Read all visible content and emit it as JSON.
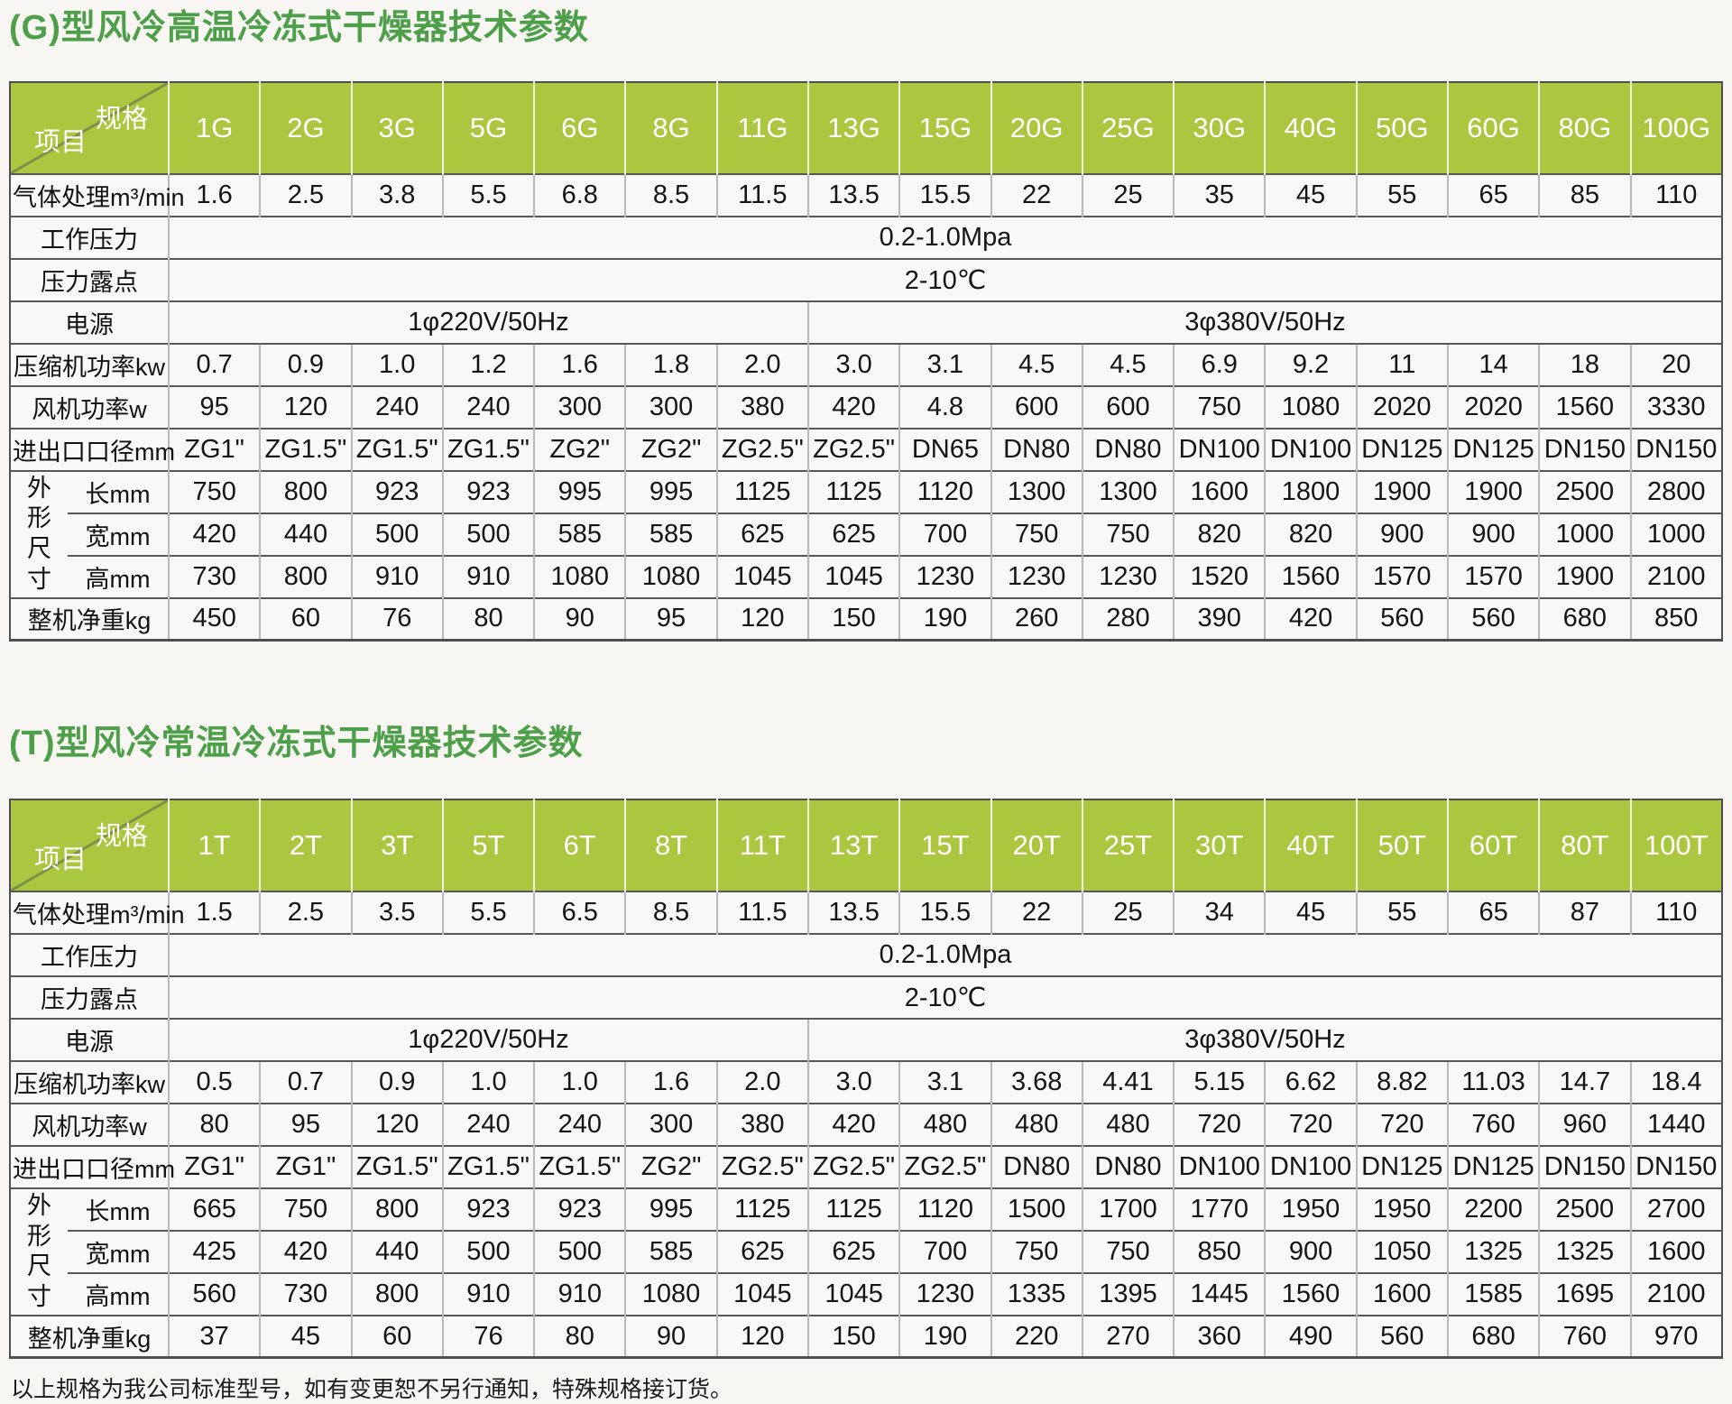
{
  "colors": {
    "title_green": "#4d9f49",
    "header_green": "#abc740",
    "page_bg": "#f7f6f2"
  },
  "note": "以上规格为我公司标准型号，如有变更恕不另行通知，特殊规格接订货。",
  "tables": [
    {
      "title": "(G)型风冷高温冷冻式干燥器技术参数",
      "corner_top": "规格",
      "corner_bottom": "项目",
      "models": [
        "1G",
        "2G",
        "3G",
        "5G",
        "6G",
        "8G",
        "11G",
        "13G",
        "15G",
        "20G",
        "25G",
        "30G",
        "40G",
        "50G",
        "60G",
        "80G",
        "100G"
      ],
      "rows": [
        {
          "label": "气体处理m³/min",
          "type": "values",
          "values": [
            "1.6",
            "2.5",
            "3.8",
            "5.5",
            "6.8",
            "8.5",
            "11.5",
            "13.5",
            "15.5",
            "22",
            "25",
            "35",
            "45",
            "55",
            "65",
            "85",
            "110"
          ]
        },
        {
          "label": "工作压力",
          "type": "span",
          "value": "0.2-1.0Mpa"
        },
        {
          "label": "压力露点",
          "type": "span",
          "value": "2-10℃"
        },
        {
          "label": "电源",
          "type": "split",
          "left": "1φ220V/50Hz",
          "left_cols": 7,
          "right": "3φ380V/50Hz",
          "right_cols": 10
        },
        {
          "label": "压缩机功率kw",
          "type": "values",
          "values": [
            "0.7",
            "0.9",
            "1.0",
            "1.2",
            "1.6",
            "1.8",
            "2.0",
            "3.0",
            "3.1",
            "4.5",
            "4.5",
            "6.9",
            "9.2",
            "11",
            "14",
            "18",
            "20"
          ]
        },
        {
          "label": "风机功率w",
          "type": "values",
          "values": [
            "95",
            "120",
            "240",
            "240",
            "300",
            "300",
            "380",
            "420",
            "4.8",
            "600",
            "600",
            "750",
            "1080",
            "2020",
            "2020",
            "1560",
            "3330"
          ]
        },
        {
          "label": "进出口口径mm",
          "type": "values",
          "values": [
            "ZG1\"",
            "ZG1.5\"",
            "ZG1.5\"",
            "ZG1.5\"",
            "ZG2\"",
            "ZG2\"",
            "ZG2.5\"",
            "ZG2.5\"",
            "DN65",
            "DN80",
            "DN80",
            "DN100",
            "DN100",
            "DN125",
            "DN125",
            "DN150",
            "DN150"
          ]
        },
        {
          "label": "长mm",
          "type": "values",
          "group": "外形尺寸",
          "group_start": true,
          "group_rows": 3,
          "values": [
            "750",
            "800",
            "923",
            "923",
            "995",
            "995",
            "1125",
            "1125",
            "1120",
            "1300",
            "1300",
            "1600",
            "1800",
            "1900",
            "1900",
            "2500",
            "2800"
          ]
        },
        {
          "label": "宽mm",
          "type": "values",
          "group": "外形尺寸",
          "values": [
            "420",
            "440",
            "500",
            "500",
            "585",
            "585",
            "625",
            "625",
            "700",
            "750",
            "750",
            "820",
            "820",
            "900",
            "900",
            "1000",
            "1000"
          ]
        },
        {
          "label": "高mm",
          "type": "values",
          "group": "外形尺寸",
          "values": [
            "730",
            "800",
            "910",
            "910",
            "1080",
            "1080",
            "1045",
            "1045",
            "1230",
            "1230",
            "1230",
            "1520",
            "1560",
            "1570",
            "1570",
            "1900",
            "2100"
          ]
        },
        {
          "label": "整机净重kg",
          "type": "values",
          "values": [
            "450",
            "60",
            "76",
            "80",
            "90",
            "95",
            "120",
            "150",
            "190",
            "260",
            "280",
            "390",
            "420",
            "560",
            "560",
            "680",
            "850"
          ]
        }
      ]
    },
    {
      "title": "(T)型风冷常温冷冻式干燥器技术参数",
      "corner_top": "规格",
      "corner_bottom": "项目",
      "models": [
        "1T",
        "2T",
        "3T",
        "5T",
        "6T",
        "8T",
        "11T",
        "13T",
        "15T",
        "20T",
        "25T",
        "30T",
        "40T",
        "50T",
        "60T",
        "80T",
        "100T"
      ],
      "rows": [
        {
          "label": "气体处理m³/min",
          "type": "values",
          "values": [
            "1.5",
            "2.5",
            "3.5",
            "5.5",
            "6.5",
            "8.5",
            "11.5",
            "13.5",
            "15.5",
            "22",
            "25",
            "34",
            "45",
            "55",
            "65",
            "87",
            "110"
          ]
        },
        {
          "label": "工作压力",
          "type": "span",
          "value": "0.2-1.0Mpa"
        },
        {
          "label": "压力露点",
          "type": "span",
          "value": "2-10℃"
        },
        {
          "label": "电源",
          "type": "split",
          "left": "1φ220V/50Hz",
          "left_cols": 7,
          "right": "3φ380V/50Hz",
          "right_cols": 10
        },
        {
          "label": "压缩机功率kw",
          "type": "values",
          "values": [
            "0.5",
            "0.7",
            "0.9",
            "1.0",
            "1.0",
            "1.6",
            "2.0",
            "3.0",
            "3.1",
            "3.68",
            "4.41",
            "5.15",
            "6.62",
            "8.82",
            "11.03",
            "14.7",
            "18.4"
          ]
        },
        {
          "label": "风机功率w",
          "type": "values",
          "values": [
            "80",
            "95",
            "120",
            "240",
            "240",
            "300",
            "380",
            "420",
            "480",
            "480",
            "480",
            "720",
            "720",
            "720",
            "760",
            "960",
            "1440"
          ]
        },
        {
          "label": "进出口口径mm",
          "type": "values",
          "values": [
            "ZG1\"",
            "ZG1\"",
            "ZG1.5\"",
            "ZG1.5\"",
            "ZG1.5\"",
            "ZG2\"",
            "ZG2.5\"",
            "ZG2.5\"",
            "ZG2.5\"",
            "DN80",
            "DN80",
            "DN100",
            "DN100",
            "DN125",
            "DN125",
            "DN150",
            "DN150"
          ]
        },
        {
          "label": "长mm",
          "type": "values",
          "group": "外形尺寸",
          "group_start": true,
          "group_rows": 3,
          "values": [
            "665",
            "750",
            "800",
            "923",
            "923",
            "995",
            "1125",
            "1125",
            "1120",
            "1500",
            "1700",
            "1770",
            "1950",
            "1950",
            "2200",
            "2500",
            "2700"
          ]
        },
        {
          "label": "宽mm",
          "type": "values",
          "group": "外形尺寸",
          "values": [
            "425",
            "420",
            "440",
            "500",
            "500",
            "585",
            "625",
            "625",
            "700",
            "750",
            "750",
            "850",
            "900",
            "1050",
            "1325",
            "1325",
            "1600"
          ]
        },
        {
          "label": "高mm",
          "type": "values",
          "group": "外形尺寸",
          "values": [
            "560",
            "730",
            "800",
            "910",
            "910",
            "1080",
            "1045",
            "1045",
            "1230",
            "1335",
            "1395",
            "1445",
            "1560",
            "1600",
            "1585",
            "1695",
            "2100"
          ]
        },
        {
          "label": "整机净重kg",
          "type": "values",
          "values": [
            "37",
            "45",
            "60",
            "76",
            "80",
            "90",
            "120",
            "150",
            "190",
            "220",
            "270",
            "360",
            "490",
            "560",
            "680",
            "760",
            "970"
          ]
        }
      ]
    }
  ]
}
